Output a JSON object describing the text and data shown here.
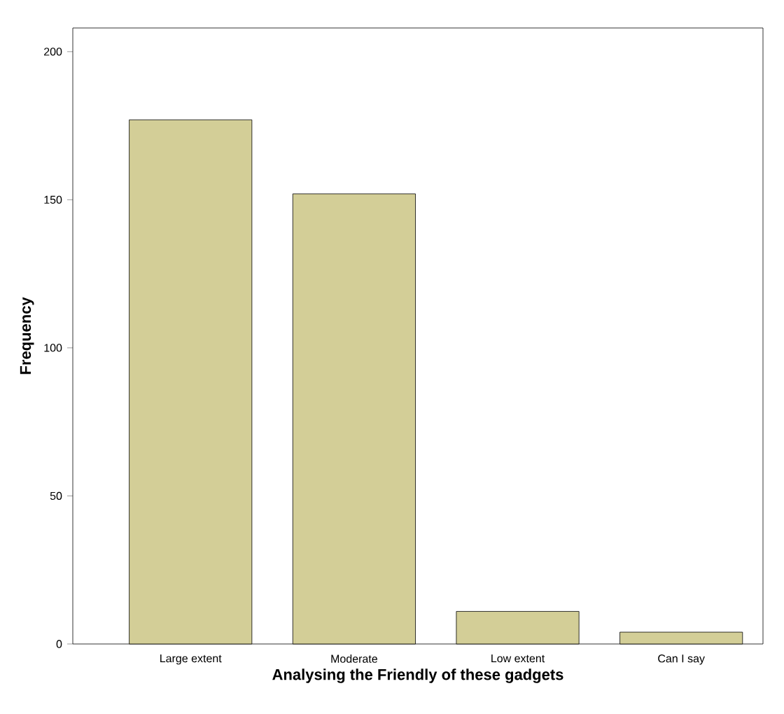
{
  "chart_data": {
    "type": "bar",
    "xlabel": "Analysing the Friendly of these gadgets",
    "ylabel": "Frequency",
    "categories": [
      "Large extent",
      "Moderate",
      "Low extent",
      "Can I say"
    ],
    "values": [
      177,
      152,
      11,
      4
    ],
    "color": "#d3ce97",
    "ylim": [
      0,
      208
    ],
    "yticks": [
      0,
      50,
      100,
      150,
      200
    ]
  }
}
